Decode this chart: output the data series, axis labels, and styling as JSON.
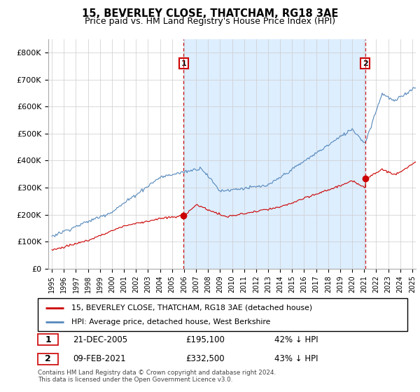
{
  "title": "15, BEVERLEY CLOSE, THATCHAM, RG18 3AE",
  "subtitle": "Price paid vs. HM Land Registry's House Price Index (HPI)",
  "ylim": [
    0,
    850000
  ],
  "yticks": [
    0,
    100000,
    200000,
    300000,
    400000,
    500000,
    600000,
    700000,
    800000
  ],
  "ytick_labels": [
    "£0",
    "£100K",
    "£200K",
    "£300K",
    "£400K",
    "£500K",
    "£600K",
    "£700K",
    "£800K"
  ],
  "legend_entry1": "15, BEVERLEY CLOSE, THATCHAM, RG18 3AE (detached house)",
  "legend_entry2": "HPI: Average price, detached house, West Berkshire",
  "annotation1_date": "21-DEC-2005",
  "annotation1_price": "£195,100",
  "annotation1_hpi": "42% ↓ HPI",
  "annotation2_date": "09-FEB-2021",
  "annotation2_price": "£332,500",
  "annotation2_hpi": "43% ↓ HPI",
  "footer": "Contains HM Land Registry data © Crown copyright and database right 2024.\nThis data is licensed under the Open Government Licence v3.0.",
  "red_color": "#cc0000",
  "blue_color": "#5588bb",
  "fill_color": "#ddeeff",
  "annotation_box_color": "#cc0000",
  "sale1_x": 2005.97,
  "sale1_y": 195100,
  "sale2_x": 2021.09,
  "sale2_y": 332500,
  "xmin": 1994.7,
  "xmax": 2025.3
}
